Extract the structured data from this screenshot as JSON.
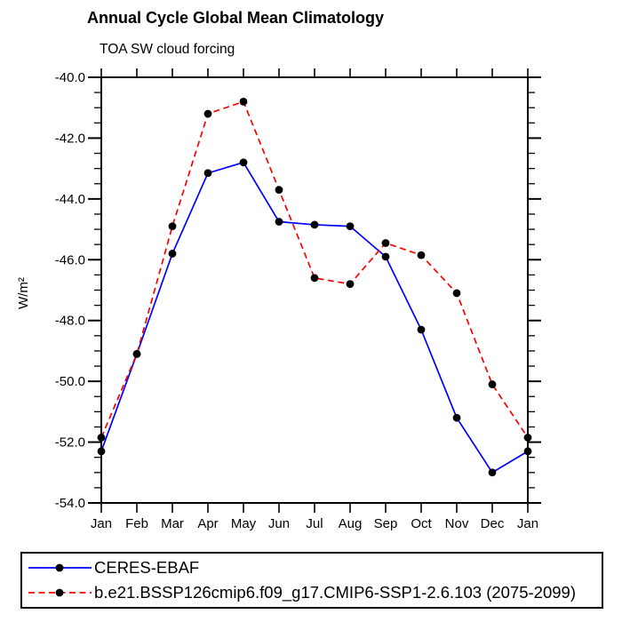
{
  "chart_data": {
    "type": "line",
    "title": "Annual Cycle Global Mean Climatology",
    "subtitle": "TOA SW cloud forcing",
    "ylabel": "W/m²",
    "xlabel": "",
    "categories": [
      "Jan",
      "Feb",
      "Mar",
      "Apr",
      "May",
      "Jun",
      "Jul",
      "Aug",
      "Sep",
      "Oct",
      "Nov",
      "Dec",
      "Jan"
    ],
    "ylim": [
      -54.0,
      -40.0
    ],
    "yticks": [
      -40.0,
      -42.0,
      -44.0,
      -46.0,
      -48.0,
      -50.0,
      -52.0,
      -54.0
    ],
    "ytick_decimals": 1,
    "minor_tick_step": 0.5,
    "grid": false,
    "legend_position": "bottom",
    "axis_color": "#000000",
    "marker_color": "#000000",
    "series": [
      {
        "name": "CERES-EBAF",
        "color": "#0000ff",
        "style": "solid",
        "values": [
          -52.3,
          -49.1,
          -45.8,
          -43.15,
          -42.8,
          -44.75,
          -44.85,
          -44.9,
          -45.9,
          -48.3,
          -51.2,
          -53.0,
          -52.3
        ]
      },
      {
        "name": "b.e21.BSSP126cmip6.f09_g17.CMIP6-SSP1-2.6.103 (2075-2099)",
        "color": "#ff0000",
        "style": "dashed",
        "values": [
          -51.85,
          -49.1,
          -44.9,
          -41.2,
          -40.8,
          -43.7,
          -46.6,
          -46.8,
          -45.45,
          -45.85,
          -47.1,
          -50.1,
          -51.85
        ]
      }
    ]
  }
}
